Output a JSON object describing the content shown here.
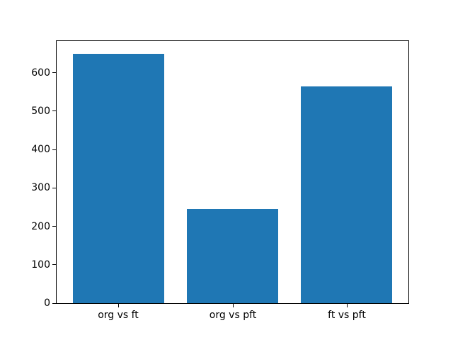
{
  "chart_data": {
    "type": "bar",
    "categories": [
      "org vs ft",
      "org vs pft",
      "ft vs pft"
    ],
    "values": [
      650,
      245,
      565
    ],
    "yticks": [
      0,
      100,
      200,
      300,
      400,
      500,
      600
    ],
    "ylim": [
      0,
      682.5
    ],
    "xlim": [
      -0.54,
      2.54
    ],
    "bar_width": 0.8,
    "bar_color": "#1f77b4",
    "background": "#ffffff",
    "axis_color": "#000000",
    "grid": false
  }
}
